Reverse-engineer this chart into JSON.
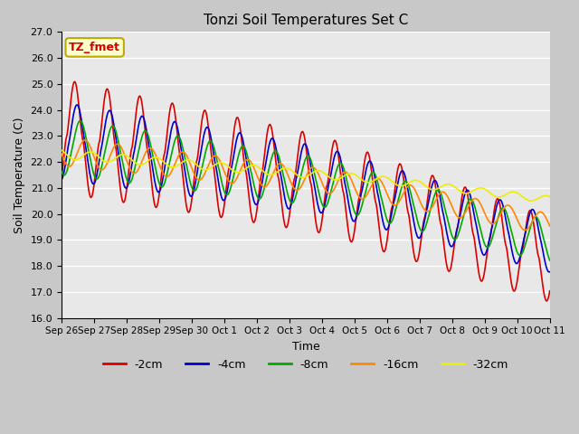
{
  "title": "Tonzi Soil Temperatures Set C",
  "xlabel": "Time",
  "ylabel": "Soil Temperature (C)",
  "ylim": [
    16.0,
    27.0
  ],
  "yticks": [
    16.0,
    17.0,
    18.0,
    19.0,
    20.0,
    21.0,
    22.0,
    23.0,
    24.0,
    25.0,
    26.0,
    27.0
  ],
  "xtick_labels": [
    "Sep 26",
    "Sep 27",
    "Sep 28",
    "Sep 29",
    "Sep 30",
    "Oct 1",
    "Oct 2",
    "Oct 3",
    "Oct 4",
    "Oct 5",
    "Oct 6",
    "Oct 7",
    "Oct 8",
    "Oct 9",
    "Oct 10",
    "Oct 11"
  ],
  "annotation_text": "TZ_fmet",
  "annotation_bg": "#ffffcc",
  "annotation_border": "#bbaa00",
  "colors": {
    "-2cm": "#dd0000",
    "-4cm": "#0000cc",
    "-8cm": "#00aa00",
    "-16cm": "#ff8800",
    "-32cm": "#eeee00"
  },
  "line_width": 1.2,
  "fig_bg": "#c8c8c8",
  "plot_bg": "#e8e8e8"
}
